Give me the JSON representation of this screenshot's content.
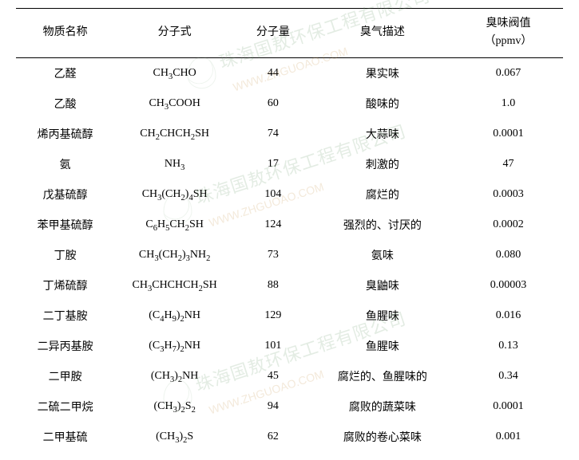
{
  "headers": {
    "name": "物质名称",
    "formula": "分子式",
    "mw": "分子量",
    "desc": "臭气描述",
    "threshold1": "臭味阀值",
    "threshold2": "（ppmv）"
  },
  "rows": [
    {
      "name": "乙醛",
      "formula": "CH<sub>3</sub>CHO",
      "mw": "44",
      "desc": "果实味",
      "thr": "0.067"
    },
    {
      "name": "乙酸",
      "formula": "CH<sub>3</sub>COOH",
      "mw": "60",
      "desc": "酸味的",
      "thr": "1.0"
    },
    {
      "name": "烯丙基硫醇",
      "formula": "CH<sub>2</sub>CHCH<sub>2</sub>SH",
      "mw": "74",
      "desc": "大蒜味",
      "thr": "0.0001"
    },
    {
      "name": "氨",
      "formula": "NH<sub>3</sub>",
      "mw": "17",
      "desc": "刺激的",
      "thr": "47"
    },
    {
      "name": "戊基硫醇",
      "formula": "CH<sub>3</sub>(CH<sub>2</sub>)<sub>4</sub>SH",
      "mw": "104",
      "desc": "腐烂的",
      "thr": "0.0003"
    },
    {
      "name": "苯甲基硫醇",
      "formula": "C<sub>6</sub>H<sub>5</sub>CH<sub>2</sub>SH",
      "mw": "124",
      "desc": "强烈的、讨厌的",
      "thr": "0.0002"
    },
    {
      "name": "丁胺",
      "formula": "CH<sub>3</sub>(CH<sub>2</sub>)<sub>3</sub>NH<sub>2</sub>",
      "mw": "73",
      "desc": "氨味",
      "thr": "0.080"
    },
    {
      "name": "丁烯硫醇",
      "formula": "CH<sub>3</sub>CHCHCH<sub>2</sub>SH",
      "mw": "88",
      "desc": "臭鼬味",
      "thr": "0.00003"
    },
    {
      "name": "二丁基胺",
      "formula": "(C<sub>4</sub>H<sub>9</sub>)<sub>2</sub>NH",
      "mw": "129",
      "desc": "鱼腥味",
      "thr": "0.016"
    },
    {
      "name": "二异丙基胺",
      "formula": "(C<sub>3</sub>H<sub>7</sub>)<sub>2</sub>NH",
      "mw": "101",
      "desc": "鱼腥味",
      "thr": "0.13"
    },
    {
      "name": "二甲胺",
      "formula": "(CH<sub>3</sub>)<sub>2</sub>NH",
      "mw": "45",
      "desc": "腐烂的、鱼腥味的",
      "thr": "0.34"
    },
    {
      "name": "二硫二甲烷",
      "formula": "(CH<sub>3</sub>)<sub>2</sub>S<sub>2</sub>",
      "mw": "94",
      "desc": "腐败的蔬菜味",
      "thr": "0.0001"
    },
    {
      "name": "二甲基硫",
      "formula": "(CH<sub>3</sub>)<sub>2</sub>S",
      "mw": "62",
      "desc": "腐败的卷心菜味",
      "thr": "0.001"
    }
  ],
  "watermark": {
    "cn": "珠海国敖环保工程有限公司",
    "en": "WWW.ZHGUOAO.COM"
  }
}
